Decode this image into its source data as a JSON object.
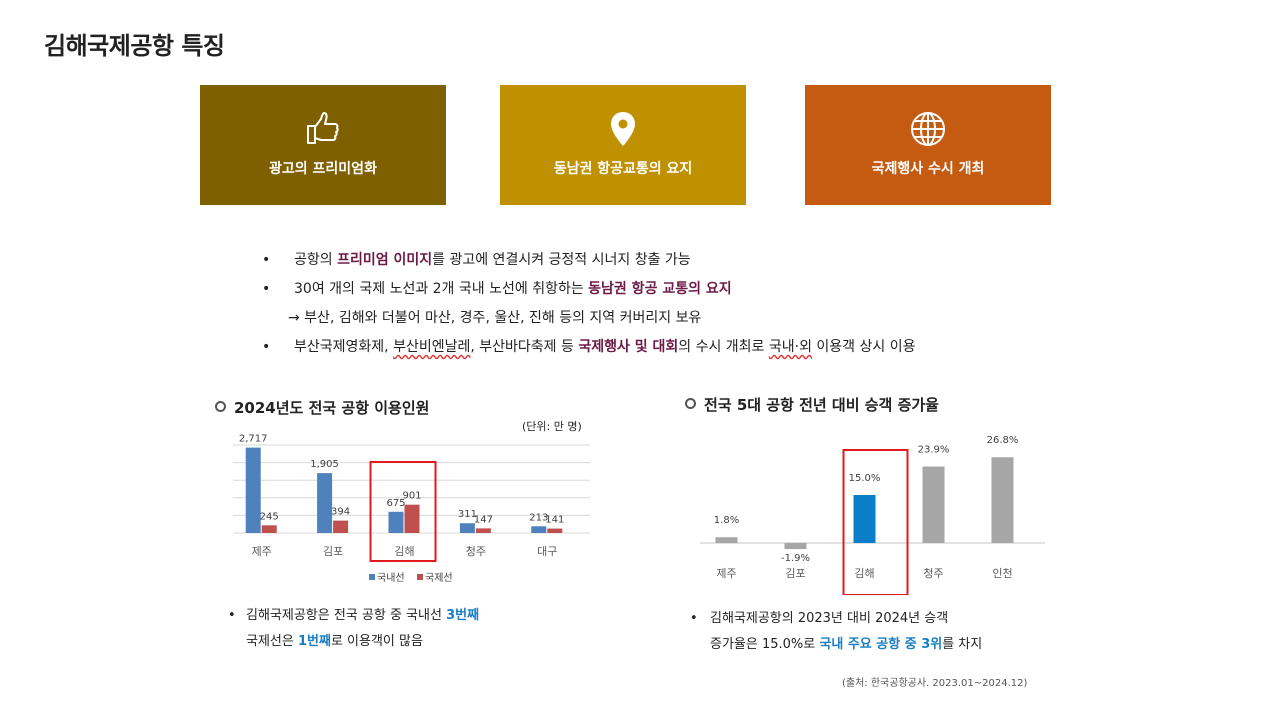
{
  "title": "김해국제공항 특징",
  "cards": [
    {
      "icon": "thumbs-up-icon",
      "label": "광고의 프리미엄화",
      "color": "#7f6000"
    },
    {
      "icon": "location-pin-icon",
      "label": "동남권 항공교통의 요지",
      "color": "#bf9000"
    },
    {
      "icon": "globe-icon",
      "label": "국제행사 수시 개최",
      "color": "#c55a11"
    }
  ],
  "bullets": {
    "b1": {
      "pre": "공항의 ",
      "hl": "프리미엄 이미지",
      "post": "를 광고에 연결시켜 긍정적 시너지 창출 가능"
    },
    "b2": {
      "pre": "30여 개의 국제 노선과 2개 국내 노선에 취항하는 ",
      "hl": "동남권 항공 교통의 요지"
    },
    "arrow": "→ 부산, 김해와 더불어 마산, 경주, 울산, 진해 등의 지역 커버리지 보유",
    "b3": {
      "a": "부산국제영화제, ",
      "b": "부산비엔날레",
      "c": ", 부산바다축제 등 ",
      "hl": "국제행사 및 대회",
      "d": "의 수시 개최로 ",
      "e": "국내·외",
      "f": " 이용객 상시 이용"
    },
    "bullet_char": "•"
  },
  "left_section": {
    "heading": "2024년도 전국 공항 이용인원",
    "unit": "(단위: 만 명)",
    "note": {
      "bullet": "•",
      "l1a": "김해국제공항은 전국 공항 중 국내선 ",
      "l1b": "3번째",
      "l2a": "국제선은 ",
      "l2b": "1번째",
      "l2c": "로 이용객이 많음"
    }
  },
  "right_section": {
    "heading": "전국 5대 공항 전년 대비 승객 증가율",
    "note": {
      "bullet": "•",
      "l1": "김해국제공항의 2023년 대비 2024년 승객",
      "l2a": "증가율은 15.0%로 ",
      "l2b": "국내 주요 공항 중 3위",
      "l2c": "를 차지"
    },
    "source": "(출처: 한국공항공사.  2023.01~2024.12)"
  },
  "chart_data": [
    {
      "type": "bar",
      "title": "2024년도 전국 공항 이용인원",
      "categories": [
        "제주",
        "김포",
        "김해",
        "청주",
        "대구"
      ],
      "series": [
        {
          "name": "국내선",
          "values": [
            2717,
            1905,
            675,
            311,
            213
          ],
          "color": "#4f81bd"
        },
        {
          "name": "국제선",
          "values": [
            245,
            394,
            901,
            147,
            141
          ],
          "color": "#c0504d"
        }
      ],
      "ylim": [
        0,
        2800
      ],
      "grid": true,
      "legend": "bottom",
      "highlight": "김해"
    },
    {
      "type": "bar",
      "title": "전국 5대 공항 전년 대비 승객 증가율",
      "categories": [
        "제주",
        "김포",
        "김해",
        "청주",
        "인천"
      ],
      "values": [
        1.8,
        -1.9,
        15.0,
        23.9,
        26.8
      ],
      "labels": [
        "1.8%",
        "-1.9%",
        "15.0%",
        "23.9%",
        "26.8%"
      ],
      "colors": [
        "#a6a6a6",
        "#a6a6a6",
        "#0a7fc7",
        "#a6a6a6",
        "#a6a6a6"
      ],
      "highlight": "김해"
    }
  ]
}
